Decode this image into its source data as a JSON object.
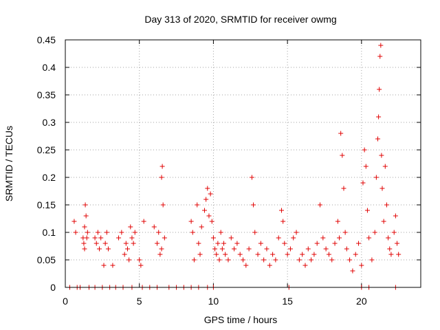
{
  "chart_data": {
    "type": "scatter",
    "title": "Day 313 of 2020, SRMTID for receiver owmg",
    "xlabel": "GPS time / hours",
    "ylabel": "SRMTID / TECUs",
    "xlim": [
      0,
      24
    ],
    "ylim": [
      0,
      0.45
    ],
    "xticks": [
      0,
      5,
      10,
      15,
      20
    ],
    "xtick_labels": [
      "0",
      "5",
      "10",
      "15",
      "20"
    ],
    "yticks": [
      0,
      0.05,
      0.1,
      0.15,
      0.2,
      0.25,
      0.3,
      0.35,
      0.4,
      0.45
    ],
    "ytick_labels": [
      "0",
      "0.05",
      "0.1",
      "0.15",
      "0.2",
      "0.25",
      "0.3",
      "0.35",
      "0.4",
      "0.45"
    ],
    "grid": true,
    "marker": "+",
    "color": "#e00000",
    "series": [
      {
        "name": "SRMTID",
        "points": [
          [
            0.6,
            0.12
          ],
          [
            0.7,
            0.1
          ],
          [
            1.2,
            0.09
          ],
          [
            1.25,
            0.08
          ],
          [
            1.3,
            0.11
          ],
          [
            1.35,
            0.15
          ],
          [
            1.4,
            0.13
          ],
          [
            1.3,
            0.07
          ],
          [
            1.45,
            0.09
          ],
          [
            1.5,
            0.1
          ],
          [
            2.0,
            0.09
          ],
          [
            2.1,
            0.08
          ],
          [
            2.2,
            0.1
          ],
          [
            2.3,
            0.07
          ],
          [
            2.4,
            0.09
          ],
          [
            2.6,
            0.04
          ],
          [
            2.7,
            0.08
          ],
          [
            2.8,
            0.1
          ],
          [
            2.9,
            0.07
          ],
          [
            3.2,
            0.04
          ],
          [
            3.6,
            0.09
          ],
          [
            3.8,
            0.1
          ],
          [
            4.0,
            0.06
          ],
          [
            4.1,
            0.08
          ],
          [
            4.2,
            0.07
          ],
          [
            4.3,
            0.05
          ],
          [
            4.4,
            0.11
          ],
          [
            4.5,
            0.09
          ],
          [
            4.6,
            0.08
          ],
          [
            4.7,
            0.1
          ],
          [
            5.0,
            0.05
          ],
          [
            5.1,
            0.04
          ],
          [
            5.3,
            0.12
          ],
          [
            6.0,
            0.11
          ],
          [
            6.2,
            0.08
          ],
          [
            6.3,
            0.1
          ],
          [
            6.5,
            0.2
          ],
          [
            6.55,
            0.22
          ],
          [
            6.6,
            0.15
          ],
          [
            6.7,
            0.09
          ],
          [
            6.4,
            0.06
          ],
          [
            6.5,
            0.07
          ],
          [
            8.5,
            0.12
          ],
          [
            8.6,
            0.1
          ],
          [
            8.7,
            0.05
          ],
          [
            8.9,
            0.15
          ],
          [
            9.0,
            0.08
          ],
          [
            9.1,
            0.06
          ],
          [
            9.2,
            0.11
          ],
          [
            9.4,
            0.14
          ],
          [
            9.5,
            0.16
          ],
          [
            9.6,
            0.18
          ],
          [
            9.7,
            0.13
          ],
          [
            9.8,
            0.17
          ],
          [
            9.9,
            0.12
          ],
          [
            10.0,
            0.09
          ],
          [
            10.1,
            0.07
          ],
          [
            10.2,
            0.06
          ],
          [
            10.3,
            0.08
          ],
          [
            10.4,
            0.05
          ],
          [
            10.5,
            0.1
          ],
          [
            10.6,
            0.07
          ],
          [
            10.7,
            0.08
          ],
          [
            10.8,
            0.06
          ],
          [
            11.0,
            0.05
          ],
          [
            11.2,
            0.09
          ],
          [
            11.4,
            0.07
          ],
          [
            11.6,
            0.08
          ],
          [
            11.8,
            0.06
          ],
          [
            12.0,
            0.05
          ],
          [
            12.2,
            0.04
          ],
          [
            12.4,
            0.07
          ],
          [
            12.6,
            0.2
          ],
          [
            12.7,
            0.15
          ],
          [
            12.8,
            0.1
          ],
          [
            13.0,
            0.06
          ],
          [
            13.2,
            0.08
          ],
          [
            13.4,
            0.05
          ],
          [
            13.6,
            0.07
          ],
          [
            13.8,
            0.04
          ],
          [
            14.0,
            0.06
          ],
          [
            14.2,
            0.05
          ],
          [
            14.4,
            0.09
          ],
          [
            14.6,
            0.14
          ],
          [
            14.7,
            0.12
          ],
          [
            14.8,
            0.08
          ],
          [
            15.0,
            0.06
          ],
          [
            15.2,
            0.07
          ],
          [
            15.4,
            0.09
          ],
          [
            15.6,
            0.1
          ],
          [
            15.8,
            0.05
          ],
          [
            16.0,
            0.06
          ],
          [
            16.2,
            0.04
          ],
          [
            16.4,
            0.07
          ],
          [
            16.6,
            0.05
          ],
          [
            16.8,
            0.06
          ],
          [
            17.0,
            0.08
          ],
          [
            17.2,
            0.15
          ],
          [
            17.4,
            0.09
          ],
          [
            17.6,
            0.07
          ],
          [
            17.8,
            0.06
          ],
          [
            18.0,
            0.05
          ],
          [
            18.2,
            0.08
          ],
          [
            18.4,
            0.12
          ],
          [
            18.5,
            0.09
          ],
          [
            18.6,
            0.28
          ],
          [
            18.7,
            0.24
          ],
          [
            18.8,
            0.18
          ],
          [
            18.9,
            0.1
          ],
          [
            19.0,
            0.07
          ],
          [
            19.2,
            0.05
          ],
          [
            19.4,
            0.03
          ],
          [
            19.6,
            0.06
          ],
          [
            19.8,
            0.08
          ],
          [
            20.0,
            0.04
          ],
          [
            20.1,
            0.19
          ],
          [
            20.2,
            0.25
          ],
          [
            20.3,
            0.22
          ],
          [
            20.4,
            0.14
          ],
          [
            20.5,
            0.09
          ],
          [
            20.7,
            0.05
          ],
          [
            20.9,
            0.1
          ],
          [
            21.0,
            0.2
          ],
          [
            21.1,
            0.27
          ],
          [
            21.15,
            0.31
          ],
          [
            21.2,
            0.36
          ],
          [
            21.25,
            0.42
          ],
          [
            21.3,
            0.44
          ],
          [
            21.35,
            0.24
          ],
          [
            21.4,
            0.18
          ],
          [
            21.5,
            0.12
          ],
          [
            21.6,
            0.22
          ],
          [
            21.7,
            0.15
          ],
          [
            21.8,
            0.09
          ],
          [
            21.9,
            0.07
          ],
          [
            22.0,
            0.06
          ],
          [
            22.2,
            0.1
          ],
          [
            22.3,
            0.13
          ],
          [
            22.4,
            0.08
          ],
          [
            22.5,
            0.06
          ],
          [
            0.3,
            0
          ],
          [
            0.8,
            0
          ],
          [
            1.0,
            0
          ],
          [
            1.6,
            0
          ],
          [
            2.0,
            0
          ],
          [
            2.5,
            0
          ],
          [
            3.0,
            0
          ],
          [
            3.4,
            0
          ],
          [
            3.9,
            0
          ],
          [
            4.5,
            0
          ],
          [
            5.2,
            0
          ],
          [
            5.7,
            0
          ],
          [
            6.2,
            0
          ],
          [
            7.0,
            0
          ],
          [
            7.5,
            0
          ],
          [
            8.0,
            0
          ],
          [
            8.5,
            0
          ],
          [
            9.0,
            0
          ],
          [
            9.6,
            0
          ],
          [
            10.0,
            0
          ],
          [
            15.1,
            0
          ],
          [
            20.0,
            0
          ],
          [
            20.5,
            0
          ],
          [
            22.3,
            0
          ]
        ]
      }
    ]
  }
}
